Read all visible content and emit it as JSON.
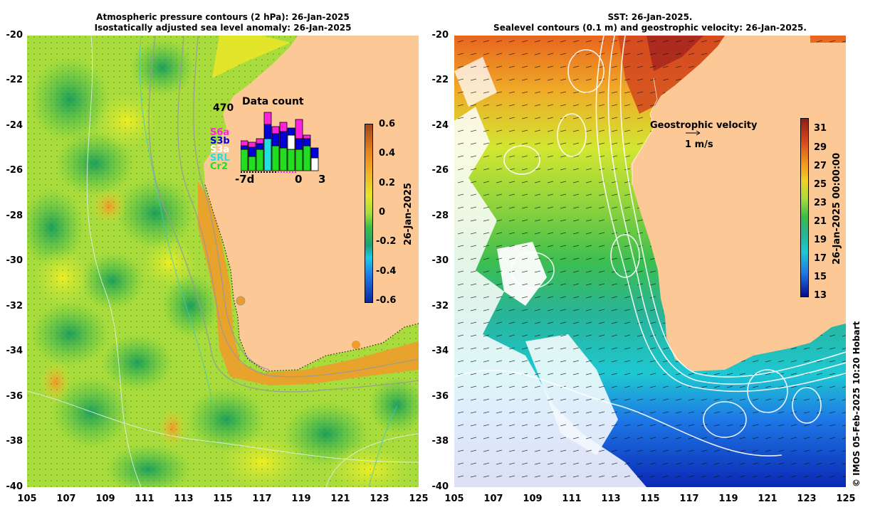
{
  "left_panel": {
    "title_line1": "Atmospheric pressure contours (2 hPa): 26-Jan-2025",
    "title_line2": "Isostatically adjusted sea level anomaly: 26-Jan-2025",
    "y_ticks": [
      "-20",
      "-22",
      "-24",
      "-26",
      "-28",
      "-30",
      "-32",
      "-34",
      "-36",
      "-38",
      "-40"
    ],
    "x_ticks": [
      "105",
      "107",
      "109",
      "111",
      "113",
      "115",
      "117",
      "119",
      "121",
      "123",
      "125"
    ],
    "colorbar_ticks": [
      "0.6",
      "0.4",
      "0.2",
      "0",
      "-0.2",
      "-0.4",
      "-0.6"
    ],
    "colorbar_label": "26-Jan-2025",
    "inset": {
      "title": "Data count",
      "max_label": "470",
      "x_label_left": "-7d",
      "x_label_mid": "0",
      "x_label_right": "3",
      "legend": [
        "S6a",
        "S3b",
        "S3a",
        "SRL",
        "Cr2"
      ],
      "legend_colors": [
        "#ff22dd",
        "#0000dd",
        "#ffffff",
        "#22e0e0",
        "#22dd22"
      ]
    }
  },
  "right_panel": {
    "title_line1": "SST: 26-Jan-2025.",
    "title_line2": "Sealevel contours (0.1 m) and geostrophic velocity: 26-Jan-2025.",
    "y_ticks": [
      "-20",
      "-22",
      "-24",
      "-26",
      "-28",
      "-30",
      "-32",
      "-34",
      "-36",
      "-38",
      "-40"
    ],
    "x_ticks": [
      "105",
      "107",
      "109",
      "111",
      "113",
      "115",
      "117",
      "119",
      "121",
      "123",
      "125"
    ],
    "colorbar_ticks": [
      "31",
      "29",
      "27",
      "25",
      "23",
      "21",
      "19",
      "17",
      "15",
      "13"
    ],
    "colorbar_label": "26-Jan-2025 00:00:00",
    "velocity_label": "Geostrophic velocity",
    "velocity_scale": "1 m/s"
  },
  "credit": "© IMOS 05-Feb-2025 10:20 Hobart",
  "colors": {
    "land": "#fbc896",
    "sst_warm": "#c8281e",
    "sst_cold": "#0a28b4",
    "sla_zero": "#3cbe46"
  }
}
